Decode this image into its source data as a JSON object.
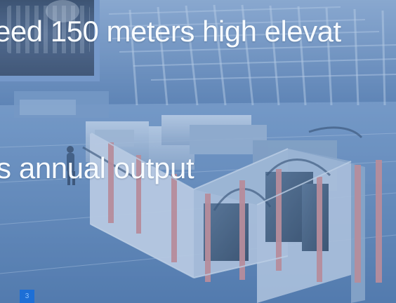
{
  "slide": {
    "heading_line_1": "eed 150 meters high elevat",
    "heading_line_2": "s annual output",
    "page_number": "3"
  },
  "colors": {
    "overlay": "#6f94c4",
    "text": "#f7fbff",
    "page_badge": "#1d6fd6"
  }
}
